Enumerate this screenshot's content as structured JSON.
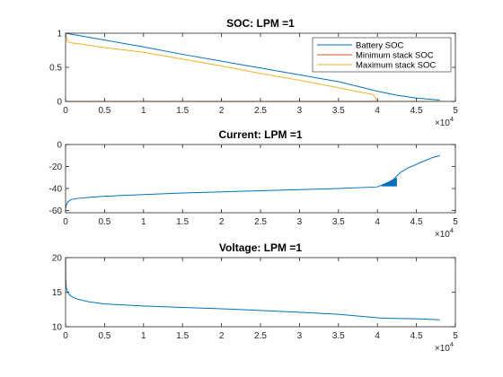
{
  "chart_data": [
    {
      "type": "line",
      "title": "SOC: LPM =1",
      "xlim": [
        0,
        5
      ],
      "ylim": [
        0,
        1
      ],
      "xticks": [
        "0",
        "0.5",
        "1",
        "1.5",
        "2",
        "2.5",
        "3",
        "3.5",
        "4",
        "4.5",
        "5"
      ],
      "yticks": [
        "0",
        "0.5",
        "1"
      ],
      "x_exponent": {
        "base": "×10",
        "power": "4"
      },
      "legend": "top-right",
      "series": [
        {
          "name": "Battery SOC",
          "color": "#0072BD",
          "x": [
            0,
            0.5,
            1,
            1.5,
            2,
            2.5,
            3,
            3.5,
            4.0,
            4.25,
            4.5,
            4.8
          ],
          "y": [
            1.0,
            0.9,
            0.8,
            0.69,
            0.59,
            0.49,
            0.39,
            0.29,
            0.15,
            0.09,
            0.05,
            0.02
          ]
        },
        {
          "name": "Minimum stack SOC",
          "color": "#D95319",
          "x": [
            0,
            3.5,
            3.95,
            4.0,
            4.8
          ],
          "y": [
            0.0,
            0.0,
            0.0,
            0.0,
            0.0
          ]
        },
        {
          "name": "Maximum stack SOC",
          "color": "#EDB120",
          "x": [
            0,
            0.02,
            0.06,
            0.2,
            0.5,
            1,
            1.5,
            2,
            2.5,
            3,
            3.5,
            3.95,
            4.0,
            4.8
          ],
          "y": [
            1.0,
            0.89,
            0.86,
            0.84,
            0.79,
            0.72,
            0.62,
            0.52,
            0.41,
            0.31,
            0.2,
            0.1,
            0.0,
            0.0
          ]
        }
      ]
    },
    {
      "type": "line",
      "title": "Current: LPM =1",
      "xlim": [
        0,
        5
      ],
      "ylim": [
        -62,
        0
      ],
      "xticks": [
        "0",
        "0.5",
        "1",
        "1.5",
        "2",
        "2.5",
        "3",
        "3.5",
        "4",
        "4.5",
        "5"
      ],
      "yticks": [
        "-60",
        "-40",
        "-20",
        "0"
      ],
      "x_exponent": {
        "base": "×10",
        "power": "4"
      },
      "series": [
        {
          "color": "#0072BD",
          "x": [
            0,
            0.01,
            0.03,
            0.07,
            0.15,
            0.3,
            0.5,
            1,
            1.5,
            2,
            2.5,
            3,
            3.5,
            4.0,
            4.05,
            4.15,
            4.2,
            4.3,
            4.4,
            4.5,
            4.6,
            4.7,
            4.8
          ],
          "y": [
            -58,
            -55,
            -52,
            -50,
            -49,
            -48,
            -47,
            -45.5,
            -44,
            -43,
            -42,
            -41,
            -40,
            -38.5,
            -37,
            -34,
            -32,
            -25,
            -21,
            -18,
            -15,
            -12,
            -10
          ]
        }
      ],
      "band": {
        "x": [
          4.05,
          4.25
        ],
        "y_low": -38,
        "y_high": -30
      }
    },
    {
      "type": "line",
      "title": "Voltage: LPM =1",
      "xlim": [
        0,
        5
      ],
      "ylim": [
        10,
        20
      ],
      "xticks": [
        "0",
        "0.5",
        "1",
        "1.5",
        "2",
        "2.5",
        "3",
        "3.5",
        "4",
        "4.5",
        "5"
      ],
      "yticks": [
        "10",
        "15",
        "20"
      ],
      "x_exponent": {
        "base": "×10",
        "power": "4"
      },
      "series": [
        {
          "color": "#0072BD",
          "x": [
            0,
            0.002,
            0.01,
            0.03,
            0.07,
            0.15,
            0.3,
            0.5,
            1,
            1.5,
            2,
            2.5,
            3,
            3.5,
            4.0,
            4.05,
            4.2,
            4.5,
            4.8
          ],
          "y": [
            20.0,
            17.0,
            15.6,
            14.9,
            14.4,
            14.0,
            13.6,
            13.3,
            13.0,
            12.8,
            12.6,
            12.35,
            12.1,
            11.8,
            11.3,
            11.25,
            11.2,
            11.15,
            11.0
          ]
        }
      ]
    }
  ]
}
